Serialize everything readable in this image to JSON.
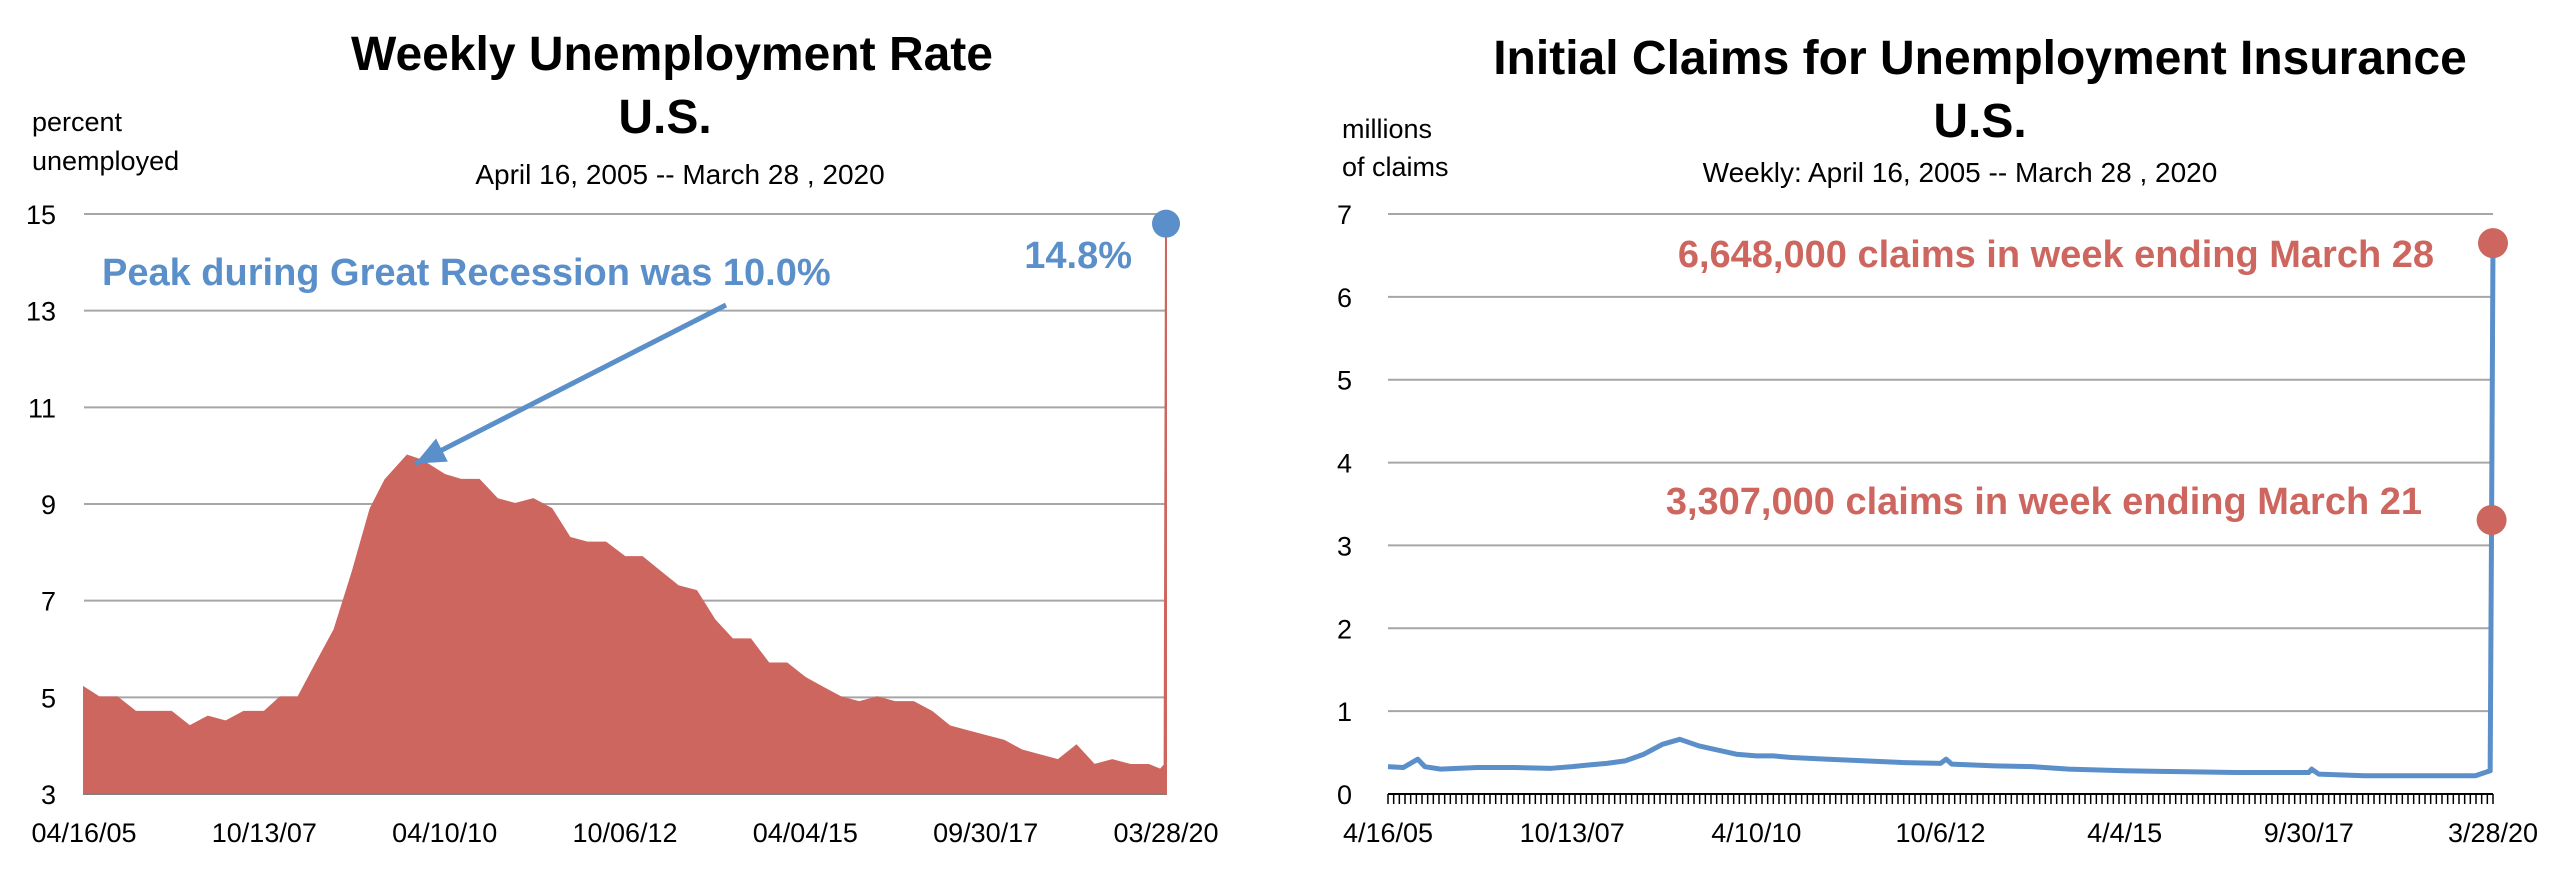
{
  "colors": {
    "red": "#cd665f",
    "blue": "#5b8fc9",
    "grid": "#a6a6a6"
  },
  "chart_data": [
    {
      "type": "area",
      "title": "Weekly Unemployment Rate",
      "title2": "U.S.",
      "subtitle": "April 16, 2005 -- March 28 , 2020",
      "ylabel": [
        "percent",
        "unemployed"
      ],
      "xlabel": "",
      "ylim": [
        3,
        15
      ],
      "yticks": [
        3,
        5,
        7,
        9,
        11,
        13,
        15
      ],
      "xlim": [
        "2005-04-16",
        "2020-03-28"
      ],
      "xtick_labels": [
        "04/16/05",
        "10/13/07",
        "04/10/10",
        "10/06/12",
        "04/04/15",
        "09/30/17",
        "03/28/20"
      ],
      "grid": true,
      "series": [
        {
          "color": "#cd665f",
          "points": [
            [
              "2005-04-16",
              5.2
            ],
            [
              "2005-07-01",
              5.0
            ],
            [
              "2005-10-01",
              5.0
            ],
            [
              "2006-01-01",
              4.7
            ],
            [
              "2006-04-01",
              4.7
            ],
            [
              "2006-07-01",
              4.7
            ],
            [
              "2006-10-01",
              4.4
            ],
            [
              "2007-01-01",
              4.6
            ],
            [
              "2007-04-01",
              4.5
            ],
            [
              "2007-07-01",
              4.7
            ],
            [
              "2007-10-13",
              4.7
            ],
            [
              "2008-01-01",
              5.0
            ],
            [
              "2008-04-01",
              5.0
            ],
            [
              "2008-07-01",
              5.7
            ],
            [
              "2008-10-01",
              6.4
            ],
            [
              "2009-01-01",
              7.6
            ],
            [
              "2009-04-01",
              8.9
            ],
            [
              "2009-06-15",
              9.5
            ],
            [
              "2009-10-03",
              10.0
            ],
            [
              "2009-12-15",
              9.9
            ],
            [
              "2010-04-10",
              9.6
            ],
            [
              "2010-07-01",
              9.5
            ],
            [
              "2010-10-01",
              9.5
            ],
            [
              "2011-01-01",
              9.1
            ],
            [
              "2011-04-01",
              9.0
            ],
            [
              "2011-07-01",
              9.1
            ],
            [
              "2011-10-01",
              8.9
            ],
            [
              "2012-01-01",
              8.3
            ],
            [
              "2012-04-01",
              8.2
            ],
            [
              "2012-07-01",
              8.2
            ],
            [
              "2012-10-06",
              7.9
            ],
            [
              "2013-01-01",
              7.9
            ],
            [
              "2013-04-01",
              7.6
            ],
            [
              "2013-07-01",
              7.3
            ],
            [
              "2013-10-01",
              7.2
            ],
            [
              "2014-01-01",
              6.6
            ],
            [
              "2014-04-01",
              6.2
            ],
            [
              "2014-07-01",
              6.2
            ],
            [
              "2014-10-01",
              5.7
            ],
            [
              "2015-01-01",
              5.7
            ],
            [
              "2015-04-04",
              5.4
            ],
            [
              "2015-07-01",
              5.2
            ],
            [
              "2015-10-01",
              5.0
            ],
            [
              "2016-01-01",
              4.9
            ],
            [
              "2016-04-01",
              5.0
            ],
            [
              "2016-07-01",
              4.9
            ],
            [
              "2016-10-01",
              4.9
            ],
            [
              "2017-01-01",
              4.7
            ],
            [
              "2017-04-01",
              4.4
            ],
            [
              "2017-07-01",
              4.3
            ],
            [
              "2017-09-30",
              4.2
            ],
            [
              "2018-01-01",
              4.1
            ],
            [
              "2018-04-01",
              3.9
            ],
            [
              "2018-07-01",
              3.8
            ],
            [
              "2018-10-01",
              3.7
            ],
            [
              "2019-01-01",
              4.0
            ],
            [
              "2019-04-01",
              3.6
            ],
            [
              "2019-07-01",
              3.7
            ],
            [
              "2019-10-01",
              3.6
            ],
            [
              "2020-01-01",
              3.6
            ],
            [
              "2020-02-29",
              3.5
            ],
            [
              "2020-03-21",
              3.6
            ],
            [
              "2020-03-28",
              14.8
            ]
          ]
        }
      ],
      "annotations": [
        {
          "text": "Peak during Great Recession was 10.0%",
          "color": "#5b8fc9",
          "x": "2009-10-03",
          "y": 10.0
        },
        {
          "text": "14.8%",
          "color": "#5b8fc9",
          "x": "2020-03-28",
          "y": 14.8
        }
      ]
    },
    {
      "type": "line",
      "title": "Initial Claims for Unemployment Insurance",
      "title2": "U.S.",
      "subtitle": "Weekly: April 16, 2005 -- March 28 , 2020",
      "ylabel": [
        "millions",
        "of claims"
      ],
      "xlabel": "",
      "ylim": [
        0,
        7
      ],
      "yticks": [
        0,
        1,
        2,
        3,
        4,
        5,
        6,
        7
      ],
      "xlim": [
        "2005-04-16",
        "2020-03-28"
      ],
      "xtick_labels": [
        "4/16/05",
        "10/13/07",
        "4/10/10",
        "10/6/12",
        "4/4/15",
        "9/30/17",
        "3/28/20"
      ],
      "grid": true,
      "series": [
        {
          "color": "#5b8fc9",
          "points": [
            [
              "2005-04-16",
              0.33
            ],
            [
              "2005-07-01",
              0.32
            ],
            [
              "2005-09-10",
              0.42
            ],
            [
              "2005-10-15",
              0.33
            ],
            [
              "2006-01-01",
              0.3
            ],
            [
              "2006-07-01",
              0.32
            ],
            [
              "2007-01-01",
              0.32
            ],
            [
              "2007-07-01",
              0.31
            ],
            [
              "2007-10-13",
              0.33
            ],
            [
              "2008-01-01",
              0.35
            ],
            [
              "2008-04-01",
              0.37
            ],
            [
              "2008-07-01",
              0.4
            ],
            [
              "2008-10-01",
              0.48
            ],
            [
              "2009-01-01",
              0.6
            ],
            [
              "2009-03-28",
              0.66
            ],
            [
              "2009-07-01",
              0.58
            ],
            [
              "2009-10-01",
              0.53
            ],
            [
              "2010-01-01",
              0.48
            ],
            [
              "2010-04-10",
              0.46
            ],
            [
              "2010-07-01",
              0.46
            ],
            [
              "2010-10-01",
              0.44
            ],
            [
              "2011-04-01",
              0.42
            ],
            [
              "2011-10-01",
              0.4
            ],
            [
              "2012-04-01",
              0.38
            ],
            [
              "2012-10-06",
              0.37
            ],
            [
              "2012-11-03",
              0.42
            ],
            [
              "2012-12-01",
              0.36
            ],
            [
              "2013-07-01",
              0.34
            ],
            [
              "2014-01-01",
              0.33
            ],
            [
              "2014-07-01",
              0.3
            ],
            [
              "2015-04-04",
              0.28
            ],
            [
              "2016-01-01",
              0.27
            ],
            [
              "2016-10-01",
              0.26
            ],
            [
              "2017-09-30",
              0.26
            ],
            [
              "2017-10-14",
              0.3
            ],
            [
              "2017-11-18",
              0.24
            ],
            [
              "2018-07-01",
              0.22
            ],
            [
              "2019-01-01",
              0.22
            ],
            [
              "2019-07-01",
              0.22
            ],
            [
              "2020-01-01",
              0.22
            ],
            [
              "2020-03-14",
              0.28
            ],
            [
              "2020-03-21",
              3.307
            ],
            [
              "2020-03-28",
              6.648
            ]
          ]
        }
      ],
      "markers": [
        {
          "x": "2020-03-28",
          "y": 6.648,
          "color": "#cd665f"
        },
        {
          "x": "2020-03-21",
          "y": 3.307,
          "color": "#cd665f"
        }
      ],
      "annotations": [
        {
          "text": "6,648,000 claims in week ending March 28",
          "color": "#cd665f",
          "x": "2020-03-28",
          "y": 6.648
        },
        {
          "text": "3,307,000 claims in week ending March 21",
          "color": "#cd665f",
          "x": "2020-03-21",
          "y": 3.307
        }
      ]
    }
  ]
}
